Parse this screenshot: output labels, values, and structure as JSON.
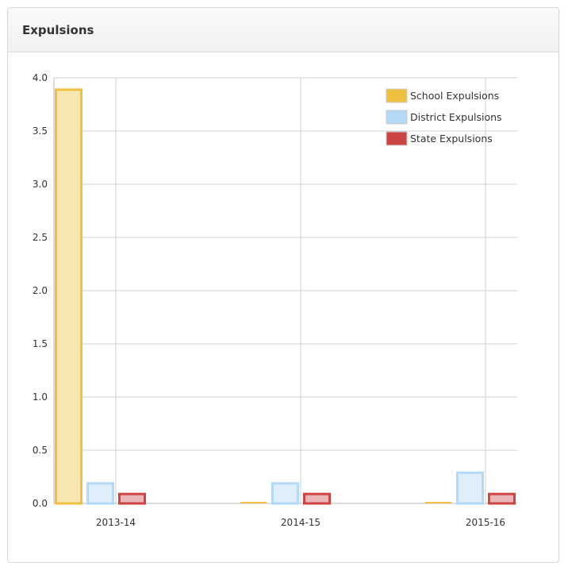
{
  "panel": {
    "title": "Expulsions"
  },
  "colors": {
    "school_stroke": "#f0c040",
    "school_fill": "#f7e6b0",
    "district_stroke": "#b3d9f7",
    "district_fill": "#deeefb",
    "state_stroke": "#cc4444",
    "state_fill": "#eab5b5",
    "grid": "#d0d0d0",
    "axis": "#bbbbbb"
  },
  "chart_data": {
    "type": "bar",
    "categories": [
      "2013-14",
      "2014-15",
      "2015-16"
    ],
    "series": [
      {
        "name": "School Expulsions",
        "values": [
          3.9,
          0.0,
          0.0
        ]
      },
      {
        "name": "District Expulsions",
        "values": [
          0.2,
          0.2,
          0.3
        ]
      },
      {
        "name": "State Expulsions",
        "values": [
          0.1,
          0.1,
          0.1
        ]
      }
    ],
    "ylim": [
      0,
      4
    ],
    "yticks": [
      "0.0",
      "0.5",
      "1.0",
      "1.5",
      "2.0",
      "2.5",
      "3.0",
      "3.5",
      "4.0"
    ],
    "grid": true,
    "legend_position": "top-right"
  }
}
